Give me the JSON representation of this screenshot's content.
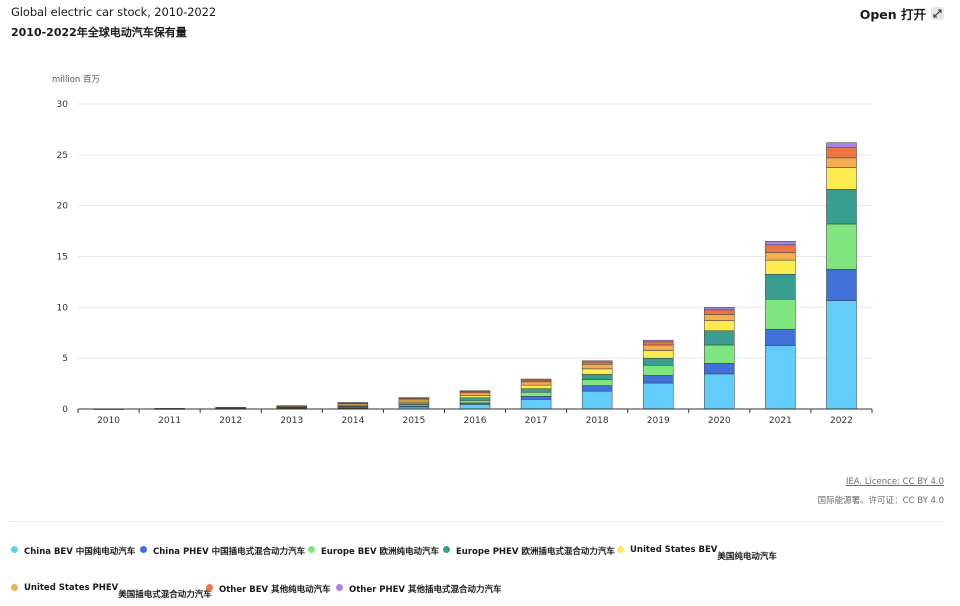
{
  "header": {
    "title": "Global electric car stock, 2010-2022",
    "subtitle": "2010-2022年全球电动汽车保有量",
    "open_label": "Open 打开"
  },
  "chart_data": {
    "type": "bar",
    "stacked": true,
    "unit_label": "million 百万",
    "categories": [
      "2010",
      "2011",
      "2012",
      "2013",
      "2014",
      "2015",
      "2016",
      "2017",
      "2018",
      "2019",
      "2020",
      "2021",
      "2022"
    ],
    "ylim": [
      0,
      30
    ],
    "yticks": [
      0,
      5,
      10,
      15,
      20,
      25,
      30
    ],
    "grid": true,
    "legend_placement": "bottom",
    "series": [
      {
        "name": "China BEV 中国纯电动汽车",
        "color": "#62cdfb",
        "values": [
          0.01,
          0.02,
          0.03,
          0.05,
          0.1,
          0.2,
          0.45,
          0.95,
          1.75,
          2.55,
          3.45,
          6.25,
          10.65
        ]
      },
      {
        "name": "China PHEV 中国插电式混合动力汽车",
        "color": "#4170d8",
        "values": [
          0,
          0,
          0.01,
          0.01,
          0.03,
          0.1,
          0.15,
          0.3,
          0.55,
          0.75,
          1.05,
          1.6,
          3.1
        ]
      },
      {
        "name": "Europe BEV 欧洲纯电动汽车",
        "color": "#7ee57f",
        "values": [
          0.01,
          0.01,
          0.02,
          0.04,
          0.08,
          0.15,
          0.25,
          0.4,
          0.6,
          1.0,
          1.8,
          2.95,
          4.45
        ]
      },
      {
        "name": "Europe PHEV 欧洲插电式混合动力汽车",
        "color": "#399e8f",
        "values": [
          0,
          0,
          0.01,
          0.03,
          0.08,
          0.17,
          0.26,
          0.35,
          0.5,
          0.7,
          1.4,
          2.45,
          3.4
        ]
      },
      {
        "name": "United States BEV美国纯电动汽车",
        "color": "#fcec50",
        "values": [
          0,
          0.01,
          0.02,
          0.05,
          0.1,
          0.16,
          0.23,
          0.35,
          0.55,
          0.75,
          1.0,
          1.4,
          2.15
        ]
      },
      {
        "name": "United States PHEV美国插电式混合动力汽车",
        "color": "#f7ae52",
        "values": [
          0,
          0.01,
          0.04,
          0.09,
          0.15,
          0.2,
          0.25,
          0.32,
          0.45,
          0.55,
          0.6,
          0.75,
          0.95
        ]
      },
      {
        "name": "Other BEV 其他纯电动汽车",
        "color": "#ec7641",
        "values": [
          0.01,
          0.01,
          0.02,
          0.04,
          0.06,
          0.08,
          0.13,
          0.18,
          0.22,
          0.3,
          0.45,
          0.75,
          1.0
        ]
      },
      {
        "name": "Other PHEV 其他插电式混合动力汽车",
        "color": "#a684e8",
        "values": [
          0,
          0,
          0.01,
          0.02,
          0.04,
          0.06,
          0.08,
          0.1,
          0.12,
          0.17,
          0.25,
          0.35,
          0.5
        ]
      }
    ]
  },
  "credits": {
    "licence": "IEA. Licence: CC BY 4.0",
    "licence_cn": "国际能源署。许可证：CC BY 4.0"
  }
}
